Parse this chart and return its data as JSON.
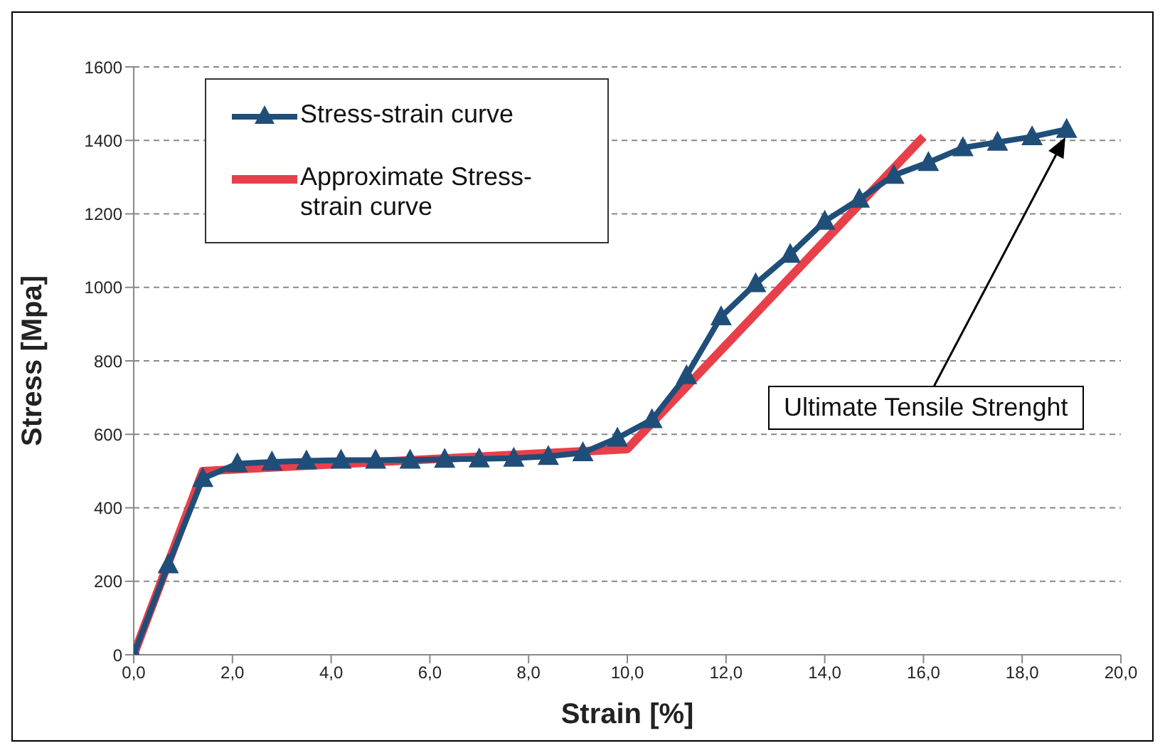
{
  "chart_data": {
    "type": "line",
    "xlabel": "Strain [%]",
    "ylabel": "Stress [Mpa]",
    "series": [
      {
        "name": "Stress-strain curve",
        "color": "#1f4e79",
        "marker": "triangle",
        "x": [
          0,
          0.7,
          1.4,
          2.1,
          2.8,
          3.5,
          4.2,
          4.9,
          5.6,
          6.3,
          7.0,
          7.7,
          8.4,
          9.1,
          9.8,
          10.5,
          11.2,
          11.9,
          12.6,
          13.3,
          14.0,
          14.7,
          15.4,
          16.1,
          16.8,
          17.5,
          18.2,
          18.9
        ],
        "values": [
          0,
          245,
          480,
          520,
          525,
          528,
          530,
          530,
          530,
          532,
          533,
          535,
          540,
          550,
          590,
          640,
          760,
          920,
          1010,
          1090,
          1180,
          1240,
          1305,
          1340,
          1380,
          1395,
          1410,
          1430
        ]
      },
      {
        "name": "Approximate Stress-strain curve",
        "color": "#e8404a",
        "marker": "none",
        "x": [
          0,
          1.4,
          10.0,
          16.0
        ],
        "values": [
          0,
          500,
          560,
          1410
        ]
      }
    ],
    "xlim": [
      0,
      20
    ],
    "xticks": [
      {
        "value": 0,
        "label": "0,0"
      },
      {
        "value": 2,
        "label": "2,0"
      },
      {
        "value": 4,
        "label": "4,0"
      },
      {
        "value": 6,
        "label": "6,0"
      },
      {
        "value": 8,
        "label": "8,0"
      },
      {
        "value": 10,
        "label": "10,0"
      },
      {
        "value": 12,
        "label": "12,0"
      },
      {
        "value": 14,
        "label": "14,0"
      },
      {
        "value": 16,
        "label": "16,0"
      },
      {
        "value": 18,
        "label": "18,0"
      },
      {
        "value": 20,
        "label": "20,0"
      }
    ],
    "ylim": [
      0,
      1600
    ],
    "yticks": [
      0,
      200,
      400,
      600,
      800,
      1000,
      1200,
      1400,
      1600
    ],
    "grid": "y",
    "legend": "top left",
    "annotations": [
      "Ultimate Tensile Strenght"
    ]
  }
}
